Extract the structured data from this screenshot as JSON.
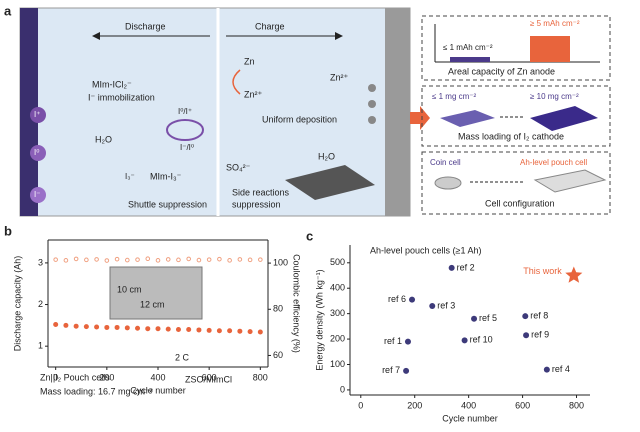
{
  "diagram": {
    "panel_label": "a",
    "discharge": "Discharge",
    "charge": "Charge",
    "complex": "MIm-ICl₂⁻",
    "immobilization": "I⁻ immobilization",
    "redox1": "I⁰/I⁺",
    "redox2": "I⁻/I⁰",
    "water1": "H₂O",
    "triiodide": "I₃⁻",
    "complex2": "MIm-I₃⁻",
    "shuttle": "Shuttle suppression",
    "zn": "Zn",
    "zn_ion1": "Zn²⁺",
    "zn_ion2": "Zn²⁺",
    "deposition": "Uniform deposition",
    "sulfate": "SO₄²⁻",
    "water2": "H₂O",
    "side1": "Side reactions",
    "side2": "suppression",
    "sphere_plus": "I⁺",
    "sphere_zero": "I⁰",
    "sphere_minus": "I⁻",
    "low_cap": "≤ 1 mAh cm⁻²",
    "high_cap": "≥ 5 mAh cm⁻²",
    "cap_caption": "Areal capacity of Zn anode",
    "low_load": "≤ 1 mg cm⁻²",
    "high_load": "≥ 10 mg cm⁻²",
    "load_caption": "Mass loading of I₂ cathode",
    "coin": "Coin cell",
    "pouch": "Ah-level pouch cell",
    "config_caption": "Cell configuration"
  },
  "chart_data": [
    {
      "type": "scatter",
      "panel_label": "b",
      "x_label": "Cycle number",
      "y_label": "Discharge capacity (Ah)",
      "y2_label": "Coulombic efficiency (%)",
      "annotations": [
        "2 C",
        "Zn||I₂ Pouch cells",
        "Mass loading: 16.7 mg cm⁻²",
        "ZSO/MImCl",
        "10 cm",
        "12 cm"
      ],
      "x": [
        0,
        40,
        80,
        120,
        160,
        200,
        240,
        280,
        320,
        360,
        400,
        440,
        480,
        520,
        560,
        600,
        640,
        680,
        720,
        760,
        800
      ],
      "series": [
        {
          "color": "#e8643c",
          "values": [
            1.52,
            1.5,
            1.48,
            1.47,
            1.46,
            1.45,
            1.45,
            1.44,
            1.43,
            1.42,
            1.42,
            1.41,
            1.4,
            1.4,
            1.39,
            1.38,
            1.37,
            1.37,
            1.36,
            1.35,
            1.34
          ]
        },
        {
          "color": "#f0a080",
          "axis": "y2",
          "values": [
            101.5,
            101.2,
            101.8,
            101.4,
            101.6,
            101.1,
            101.7,
            101.3,
            101.5,
            101.9,
            101.2,
            101.6,
            101.4,
            101.8,
            101.3,
            101.5,
            101.7,
            101.2,
            101.6,
            101.4,
            101.5
          ]
        }
      ],
      "xlim": [
        -30,
        830
      ],
      "xticks": [
        0,
        200,
        400,
        600,
        800
      ],
      "ylim": [
        0.5,
        3.55
      ],
      "yticks": [
        1,
        2,
        3
      ],
      "y2lim": [
        55,
        110
      ],
      "y2ticks": [
        60,
        80,
        100
      ]
    },
    {
      "type": "scatter",
      "panel_label": "c",
      "title": "Ah-level pouch cells (≥1 Ah)",
      "x_label": "Cycle number",
      "y_label": "Energy density (Wh kg⁻¹)",
      "series": [
        {
          "color": "#3d3a7a",
          "x": [
            175,
            337,
            265,
            690,
            420,
            190,
            168,
            610,
            613,
            385
          ],
          "values": [
            190,
            480,
            330,
            80,
            280,
            355,
            75,
            290,
            215,
            195
          ],
          "labels": [
            "ref 1",
            "ref 2",
            "ref 3",
            "ref 4",
            "ref 5",
            "ref 6",
            "ref 7",
            "ref 8",
            "ref 9",
            "ref 10"
          ]
        },
        {
          "name": "This work",
          "color": "#e8643c",
          "x": [
            790
          ],
          "values": [
            450
          ]
        }
      ],
      "xlim": [
        -40,
        850
      ],
      "xticks": [
        0,
        200,
        400,
        600,
        800
      ],
      "ylim": [
        -20,
        570
      ],
      "yticks": [
        0,
        100,
        200,
        300,
        400,
        500
      ]
    }
  ]
}
